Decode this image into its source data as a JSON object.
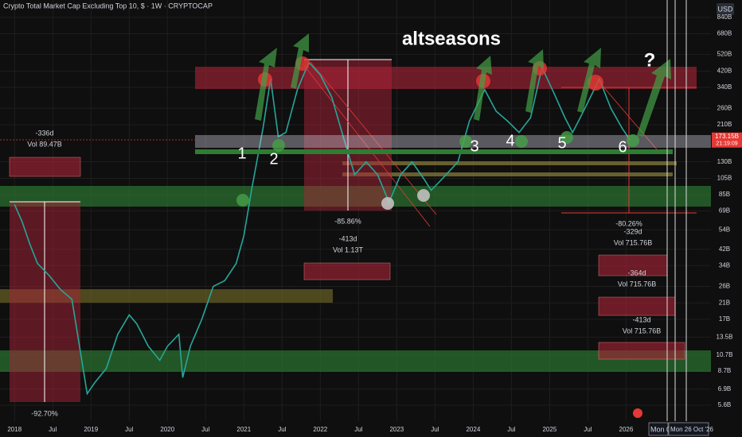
{
  "chart_data": {
    "type": "line",
    "title": "Crypto Total Market Cap Excluding Top 10, $ · 1W · CRYPTOCAP",
    "currency": "USD",
    "log_scale": true,
    "grid": true,
    "ylim": [
      4.56,
      1052
    ],
    "xlim": [
      2017.81,
      2027.11
    ],
    "yticks": [
      {
        "value": 5.6,
        "label": "5.6B"
      },
      {
        "value": 6.9,
        "label": "6.9B"
      },
      {
        "value": 8.7,
        "label": "8.7B"
      },
      {
        "value": 10.7,
        "label": "10.7B"
      },
      {
        "value": 13.5,
        "label": "13.5B"
      },
      {
        "value": 17,
        "label": "17B"
      },
      {
        "value": 21,
        "label": "21B"
      },
      {
        "value": 26,
        "label": "26B"
      },
      {
        "value": 34,
        "label": "34B"
      },
      {
        "value": 42,
        "label": "42B"
      },
      {
        "value": 54,
        "label": "54B"
      },
      {
        "value": 69,
        "label": "69B"
      },
      {
        "value": 85,
        "label": "85B"
      },
      {
        "value": 105,
        "label": "105B"
      },
      {
        "value": 130,
        "label": "130B"
      },
      {
        "value": 210,
        "label": "210B"
      },
      {
        "value": 260,
        "label": "260B"
      },
      {
        "value": 340,
        "label": "340B"
      },
      {
        "value": 420,
        "label": "420B"
      },
      {
        "value": 520,
        "label": "520B"
      },
      {
        "value": 680,
        "label": "680B"
      },
      {
        "value": 840,
        "label": "840B"
      }
    ],
    "xticks": [
      {
        "value": 2018,
        "label": "2018"
      },
      {
        "value": 2018.5,
        "label": "Jul"
      },
      {
        "value": 2019,
        "label": "2019"
      },
      {
        "value": 2019.5,
        "label": "Jul"
      },
      {
        "value": 2020,
        "label": "2020"
      },
      {
        "value": 2020.5,
        "label": "Jul"
      },
      {
        "value": 2021,
        "label": "2021"
      },
      {
        "value": 2021.5,
        "label": "Jul"
      },
      {
        "value": 2022,
        "label": "2022"
      },
      {
        "value": 2022.5,
        "label": "Jul"
      },
      {
        "value": 2023,
        "label": "2023"
      },
      {
        "value": 2023.5,
        "label": "Jul"
      },
      {
        "value": 2024,
        "label": "2024"
      },
      {
        "value": 2024.5,
        "label": "Jul"
      },
      {
        "value": 2025,
        "label": "2025"
      },
      {
        "value": 2025.5,
        "label": "Jul"
      },
      {
        "value": 2026,
        "label": "2026"
      }
    ],
    "series": [
      {
        "color": "#26a69a",
        "x": [
          2018.0,
          2018.1,
          2018.2,
          2018.3,
          2018.45,
          2018.6,
          2018.75,
          2018.95,
          2019.05,
          2019.2,
          2019.35,
          2019.5,
          2019.6,
          2019.75,
          2019.9,
          2020.0,
          2020.15,
          2020.2,
          2020.3,
          2020.45,
          2020.6,
          2020.75,
          2020.9,
          2021.0,
          2021.1,
          2021.25,
          2021.35,
          2021.45,
          2021.55,
          2021.7,
          2021.85,
          2022.0,
          2022.15,
          2022.3,
          2022.45,
          2022.6,
          2022.75,
          2022.9,
          2023.05,
          2023.2,
          2023.35,
          2023.45,
          2023.6,
          2023.8,
          2023.95,
          2024.15,
          2024.3,
          2024.45,
          2024.6,
          2024.75,
          2024.9,
          2025.05,
          2025.2,
          2025.3,
          2025.4,
          2025.55,
          2025.65,
          2025.8,
          2025.95,
          2026.05
        ],
        "values": [
          75,
          60,
          45,
          35,
          30,
          25,
          22,
          6.5,
          7.5,
          9,
          14,
          18,
          16,
          12,
          10,
          12,
          14,
          8,
          12,
          17,
          26,
          28,
          35,
          50,
          90,
          200,
          380,
          180,
          190,
          330,
          470,
          400,
          300,
          180,
          110,
          130,
          110,
          77,
          110,
          130,
          105,
          90,
          105,
          130,
          220,
          330,
          250,
          220,
          190,
          230,
          440,
          320,
          230,
          190,
          230,
          310,
          380,
          260,
          200,
          173
        ]
      }
    ],
    "last_price": {
      "value": 173.15,
      "label": "173.15B",
      "countdown": "21:19:09"
    },
    "crosshair_labels": [
      "Mon 0:",
      "Mon 26 Oct '26"
    ],
    "annotations": [
      "altseasons",
      "?",
      "1",
      "2",
      "3",
      "4",
      "5",
      "6",
      "-336d",
      "Vol 89.47B",
      "-85.86%",
      "-413d",
      "Vol 1.13T",
      "-92.70%",
      "-80.26%",
      "-329d",
      "Vol 715.76B",
      "-364d",
      "Vol 715.76B",
      "-413d",
      "Vol 715.76B"
    ]
  }
}
